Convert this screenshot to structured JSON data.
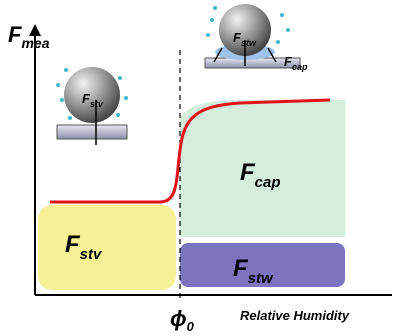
{
  "axes": {
    "y_label": {
      "main": "F",
      "sub": "mea"
    },
    "x_label": "Relative Humidity",
    "threshold": {
      "main": "ϕ",
      "sub": "0"
    }
  },
  "regions": [
    {
      "main": "F",
      "sub": "stv"
    },
    {
      "main": "F",
      "sub": "cap"
    },
    {
      "main": "F",
      "sub": "stw"
    }
  ],
  "insets": [
    {
      "labels": [
        {
          "main": "F",
          "sub": "stv"
        }
      ]
    },
    {
      "labels": [
        {
          "main": "F",
          "sub": "stw"
        },
        {
          "main": "F",
          "sub": "cap"
        }
      ]
    }
  ]
}
